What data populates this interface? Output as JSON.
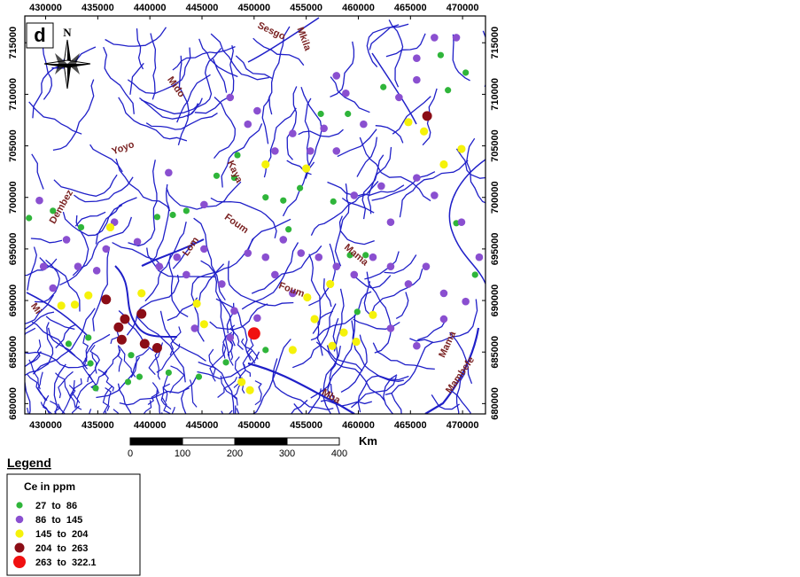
{
  "map": {
    "panel_label": "d",
    "north": "N",
    "xlim": [
      428000,
      472200
    ],
    "ylim": [
      679000,
      717600
    ],
    "xticks": [
      430000,
      435000,
      440000,
      445000,
      450000,
      455000,
      460000,
      465000,
      470000
    ],
    "yticks": [
      680000,
      685000,
      690000,
      695000,
      700000,
      705000,
      710000,
      715000
    ],
    "river_labels": [
      "Sesgo",
      "Mkila",
      "Mido",
      "Yoyo",
      "Dembez",
      "Kaya",
      "Foum",
      "Lom",
      "Mama",
      "Foum",
      "Mama",
      "Mambefe",
      "Mba",
      "Mi"
    ],
    "scale_bar": {
      "unit": "Km",
      "ticks": [
        0,
        100,
        200,
        300,
        400
      ]
    },
    "legend": {
      "heading": "Legend",
      "title": "Ce in ppm",
      "classes": [
        {
          "label": "27  to  86",
          "color": "#2fb53a",
          "points": [
            [
              428400,
              698000
            ],
            [
              433400,
              697100
            ],
            [
              430700,
              698700
            ],
            [
              446400,
              702100
            ],
            [
              448400,
              704100
            ],
            [
              456400,
              708100
            ],
            [
              459000,
              708100
            ],
            [
              462400,
              710700
            ],
            [
              467900,
              713800
            ],
            [
              468600,
              710400
            ],
            [
              470300,
              712100
            ],
            [
              459200,
              694400
            ],
            [
              460700,
              694400
            ],
            [
              469400,
              697500
            ],
            [
              471200,
              692500
            ],
            [
              459900,
              688900
            ],
            [
              451100,
              700000
            ],
            [
              452800,
              699700
            ],
            [
              453300,
              696900
            ],
            [
              454400,
              700900
            ],
            [
              457600,
              699600
            ],
            [
              440700,
              698100
            ],
            [
              442200,
              698300
            ],
            [
              443500,
              698700
            ],
            [
              448100,
              701900
            ],
            [
              434100,
              686400
            ],
            [
              434300,
              683900
            ],
            [
              432200,
              685800
            ],
            [
              434800,
              681500
            ],
            [
              438200,
              684700
            ],
            [
              437900,
              682100
            ],
            [
              439000,
              682600
            ],
            [
              441800,
              683000
            ],
            [
              447300,
              684000
            ],
            [
              451100,
              685200
            ],
            [
              444700,
              682600
            ]
          ]
        },
        {
          "label": "86  to  145",
          "color": "#8a4fd0",
          "points": [
            [
              429400,
              699700
            ],
            [
              432000,
              695900
            ],
            [
              433100,
              693300
            ],
            [
              434900,
              692900
            ],
            [
              436600,
              697600
            ],
            [
              438800,
              695700
            ],
            [
              440900,
              693300
            ],
            [
              442600,
              694200
            ],
            [
              445200,
              695000
            ],
            [
              446900,
              691600
            ],
            [
              448100,
              689000
            ],
            [
              450300,
              688300
            ],
            [
              452000,
              692500
            ],
            [
              453700,
              690700
            ],
            [
              449400,
              694600
            ],
            [
              451100,
              694200
            ],
            [
              452800,
              695900
            ],
            [
              454500,
              694600
            ],
            [
              456200,
              694200
            ],
            [
              457900,
              693300
            ],
            [
              459600,
              692500
            ],
            [
              461400,
              694200
            ],
            [
              463100,
              693300
            ],
            [
              464800,
              691600
            ],
            [
              466500,
              693300
            ],
            [
              468200,
              690700
            ],
            [
              470300,
              689900
            ],
            [
              471600,
              694200
            ],
            [
              469900,
              697600
            ],
            [
              467300,
              700200
            ],
            [
              465600,
              701900
            ],
            [
              463100,
              697600
            ],
            [
              462200,
              701100
            ],
            [
              459600,
              700200
            ],
            [
              457900,
              704500
            ],
            [
              456700,
              706700
            ],
            [
              455400,
              704500
            ],
            [
              453700,
              706200
            ],
            [
              452000,
              704500
            ],
            [
              449400,
              707100
            ],
            [
              447700,
              709700
            ],
            [
              450300,
              708400
            ],
            [
              458800,
              710100
            ],
            [
              460500,
              707100
            ],
            [
              463900,
              709700
            ],
            [
              465600,
              711400
            ],
            [
              467300,
              715500
            ],
            [
              469400,
              715500
            ],
            [
              465600,
              713500
            ],
            [
              457900,
              711800
            ],
            [
              441800,
              702400
            ],
            [
              445200,
              699300
            ],
            [
              430700,
              691200
            ],
            [
              429800,
              693300
            ],
            [
              465600,
              685600
            ],
            [
              463100,
              687300
            ],
            [
              468200,
              688200
            ],
            [
              444300,
              687300
            ],
            [
              443500,
              692500
            ],
            [
              447700,
              686400
            ],
            [
              435800,
              695000
            ]
          ]
        },
        {
          "label": "145  to  204",
          "color": "#f5f20a",
          "points": [
            [
              436200,
              697100
            ],
            [
              434100,
              690500
            ],
            [
              432800,
              689600
            ],
            [
              431500,
              689500
            ],
            [
              439200,
              690700
            ],
            [
              444500,
              689700
            ],
            [
              445200,
              687700
            ],
            [
              451100,
              703200
            ],
            [
              455000,
              702800
            ],
            [
              455100,
              690300
            ],
            [
              455800,
              688200
            ],
            [
              457300,
              691600
            ],
            [
              458600,
              686900
            ],
            [
              459800,
              686000
            ],
            [
              461400,
              688600
            ],
            [
              464800,
              707300
            ],
            [
              466300,
              706400
            ],
            [
              469900,
              704700
            ],
            [
              468200,
              703200
            ],
            [
              448800,
              682100
            ],
            [
              449600,
              681300
            ],
            [
              453700,
              685200
            ],
            [
              457500,
              685600
            ]
          ]
        },
        {
          "label": "204  to  263",
          "color": "#8b0d16",
          "points": [
            [
              435800,
              690100
            ],
            [
              437600,
              688200
            ],
            [
              437000,
              687400
            ],
            [
              437300,
              686200
            ],
            [
              439500,
              685800
            ],
            [
              440700,
              685400
            ],
            [
              466600,
              707900
            ],
            [
              439200,
              688700
            ]
          ]
        },
        {
          "label": "263  to  322.1",
          "color": "#f01010",
          "points": [
            [
              450000,
              686800
            ]
          ]
        }
      ]
    }
  }
}
